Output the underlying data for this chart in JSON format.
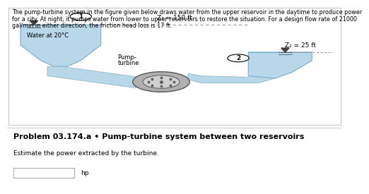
{
  "background_color": "#ffffff",
  "border_color": "#c8c8c8",
  "header_line1": "The pump-turbine system in the figure given below draws water from the upper reservoir in the daytime to produce power",
  "header_line2": "for a city. At night, it pumps water from lower to upper reservoirs to restore the situation. For a design flow rate of 21000",
  "header_line3": "gal/min in either direction, the friction head loss is 17 ft.",
  "header_fontsize": 5.8,
  "reservoir1_label": "Water at 20°C",
  "reservoir1_color": "#b8d8ea",
  "reservoir2_color": "#b8d8ea",
  "pipe_color": "#b8d8ea",
  "pipe_edge": "#8ab0c0",
  "z1_label": "Z₁ = 150 ft",
  "z2_label": "Z₂ = 25 ft",
  "node1_label": "1",
  "node2_label": "2",
  "pump_label_line1": "Pump-",
  "pump_label_line2": "turbine",
  "problem_title": "Problem 03.174.a • Pump-turbine system between two reservoirs",
  "problem_title_fontsize": 8.0,
  "subtext": "Estimate the power extracted by the turbine.",
  "subtext_fontsize": 6.5,
  "answer_box_label": "hp",
  "dashed_color": "#999999",
  "pump_outer_color": "#b0b0b0",
  "pump_inner_color": "#d0d0d0",
  "pump_dot_color": "#606060",
  "tri_color": "#404040",
  "water_line_color": "#7aabcc",
  "res_edge_color": "#7aabcc",
  "divider_color": "#d0d0d0"
}
